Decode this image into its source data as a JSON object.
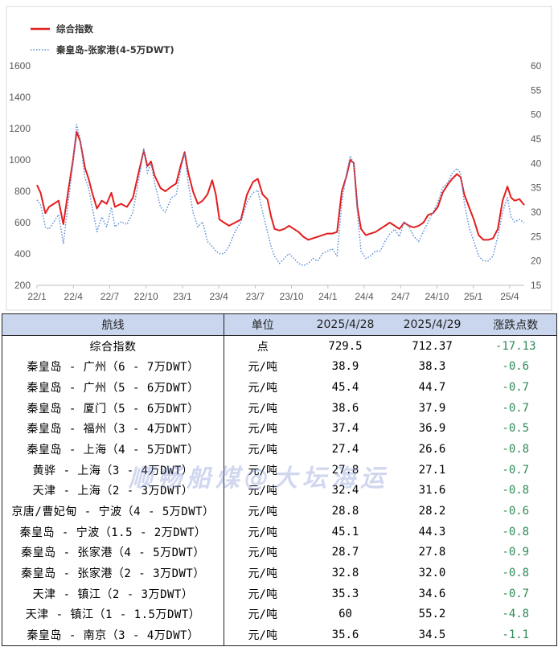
{
  "chart_data": {
    "type": "line",
    "legend": [
      {
        "name": "综合指数",
        "color": "#e31d1d",
        "style": "solid"
      },
      {
        "name": "秦皇岛-张家港(4-5万DWT)",
        "color": "#5b8fd6",
        "style": "dotted"
      }
    ],
    "x_ticks": [
      "22/1",
      "22/4",
      "22/7",
      "22/10",
      "23/1",
      "23/4",
      "23/7",
      "23/10",
      "24/1",
      "24/4",
      "24/7",
      "24/10",
      "25/1",
      "25/4"
    ],
    "y_left_ticks": [
      "200",
      "400",
      "600",
      "800",
      "1000",
      "1200",
      "1400",
      "1600"
    ],
    "y_right_ticks": [
      "15",
      "20",
      "25",
      "30",
      "35",
      "40",
      "45",
      "50",
      "55",
      "60"
    ],
    "ylim_left": [
      200,
      1600
    ],
    "ylim_right": [
      15,
      60
    ],
    "x_range": [
      0,
      40.6
    ],
    "series": [
      {
        "name": "综合指数",
        "axis": "left",
        "points": [
          [
            0,
            840
          ],
          [
            0.3,
            790
          ],
          [
            0.7,
            660
          ],
          [
            1.0,
            700
          ],
          [
            1.4,
            720
          ],
          [
            1.8,
            740
          ],
          [
            2.2,
            590
          ],
          [
            2.6,
            800
          ],
          [
            3.0,
            1000
          ],
          [
            3.3,
            1180
          ],
          [
            3.6,
            1120
          ],
          [
            4.0,
            950
          ],
          [
            4.3,
            880
          ],
          [
            4.6,
            790
          ],
          [
            5.0,
            690
          ],
          [
            5.4,
            740
          ],
          [
            5.8,
            720
          ],
          [
            6.2,
            790
          ],
          [
            6.5,
            700
          ],
          [
            7.0,
            720
          ],
          [
            7.5,
            700
          ],
          [
            8.0,
            760
          ],
          [
            8.5,
            930
          ],
          [
            8.9,
            1060
          ],
          [
            9.2,
            960
          ],
          [
            9.5,
            990
          ],
          [
            9.8,
            900
          ],
          [
            10.3,
            820
          ],
          [
            10.7,
            800
          ],
          [
            11.2,
            830
          ],
          [
            11.6,
            850
          ],
          [
            12.0,
            970
          ],
          [
            12.3,
            1050
          ],
          [
            12.6,
            920
          ],
          [
            13.0,
            800
          ],
          [
            13.4,
            720
          ],
          [
            13.8,
            740
          ],
          [
            14.2,
            780
          ],
          [
            14.6,
            870
          ],
          [
            14.9,
            780
          ],
          [
            15.2,
            620
          ],
          [
            15.6,
            600
          ],
          [
            16.0,
            580
          ],
          [
            16.5,
            600
          ],
          [
            17.0,
            620
          ],
          [
            17.5,
            780
          ],
          [
            18.0,
            860
          ],
          [
            18.4,
            880
          ],
          [
            18.8,
            780
          ],
          [
            19.2,
            750
          ],
          [
            19.5,
            640
          ],
          [
            19.8,
            560
          ],
          [
            20.2,
            550
          ],
          [
            20.6,
            560
          ],
          [
            21.0,
            580
          ],
          [
            21.4,
            560
          ],
          [
            21.8,
            540
          ],
          [
            22.2,
            510
          ],
          [
            22.6,
            490
          ],
          [
            23.0,
            500
          ],
          [
            23.4,
            510
          ],
          [
            23.8,
            520
          ],
          [
            24.2,
            530
          ],
          [
            24.6,
            530
          ],
          [
            25.0,
            540
          ],
          [
            25.4,
            800
          ],
          [
            25.8,
            900
          ],
          [
            26.1,
            1000
          ],
          [
            26.4,
            980
          ],
          [
            26.7,
            700
          ],
          [
            27.0,
            560
          ],
          [
            27.4,
            520
          ],
          [
            27.8,
            530
          ],
          [
            28.2,
            540
          ],
          [
            28.6,
            560
          ],
          [
            29.0,
            580
          ],
          [
            29.4,
            600
          ],
          [
            29.8,
            580
          ],
          [
            30.2,
            560
          ],
          [
            30.6,
            600
          ],
          [
            31.0,
            580
          ],
          [
            31.4,
            570
          ],
          [
            31.8,
            580
          ],
          [
            32.2,
            600
          ],
          [
            32.6,
            650
          ],
          [
            33.0,
            660
          ],
          [
            33.4,
            700
          ],
          [
            33.8,
            790
          ],
          [
            34.2,
            840
          ],
          [
            34.6,
            880
          ],
          [
            35.0,
            910
          ],
          [
            35.3,
            890
          ],
          [
            35.6,
            780
          ],
          [
            36.0,
            700
          ],
          [
            36.4,
            620
          ],
          [
            36.8,
            520
          ],
          [
            37.2,
            490
          ],
          [
            37.6,
            490
          ],
          [
            38.0,
            500
          ],
          [
            38.4,
            560
          ],
          [
            38.8,
            740
          ],
          [
            39.2,
            830
          ],
          [
            39.5,
            760
          ],
          [
            39.8,
            740
          ],
          [
            40.2,
            750
          ],
          [
            40.6,
            712.37
          ]
        ]
      },
      {
        "name": "秦皇岛-张家港(4-5万DWT)",
        "axis": "right",
        "points": [
          [
            0,
            32.5
          ],
          [
            0.3,
            31.5
          ],
          [
            0.7,
            27
          ],
          [
            1.0,
            26.5
          ],
          [
            1.4,
            28
          ],
          [
            1.8,
            29.5
          ],
          [
            2.2,
            23.5
          ],
          [
            2.6,
            32
          ],
          [
            3.0,
            40
          ],
          [
            3.3,
            48
          ],
          [
            3.6,
            45
          ],
          [
            4.0,
            37
          ],
          [
            4.3,
            35
          ],
          [
            4.6,
            31
          ],
          [
            5.0,
            26
          ],
          [
            5.4,
            29
          ],
          [
            5.8,
            27
          ],
          [
            6.2,
            31
          ],
          [
            6.5,
            27
          ],
          [
            7.0,
            28
          ],
          [
            7.5,
            27.5
          ],
          [
            8.0,
            30
          ],
          [
            8.5,
            37
          ],
          [
            8.9,
            43
          ],
          [
            9.2,
            38
          ],
          [
            9.5,
            40
          ],
          [
            9.8,
            36
          ],
          [
            10.3,
            31
          ],
          [
            10.7,
            30
          ],
          [
            11.2,
            33
          ],
          [
            11.6,
            33.5
          ],
          [
            12.0,
            39
          ],
          [
            12.3,
            42
          ],
          [
            12.6,
            36
          ],
          [
            13.0,
            30
          ],
          [
            13.4,
            27
          ],
          [
            13.8,
            28
          ],
          [
            14.2,
            24
          ],
          [
            14.6,
            23
          ],
          [
            14.9,
            22
          ],
          [
            15.2,
            21.5
          ],
          [
            15.6,
            21.5
          ],
          [
            16.0,
            23
          ],
          [
            16.5,
            26
          ],
          [
            17.0,
            28
          ],
          [
            17.5,
            32
          ],
          [
            18.0,
            34
          ],
          [
            18.4,
            34.5
          ],
          [
            18.8,
            30
          ],
          [
            19.2,
            26
          ],
          [
            19.5,
            23
          ],
          [
            19.8,
            21
          ],
          [
            20.2,
            19.5
          ],
          [
            20.6,
            20.5
          ],
          [
            21.0,
            21.5
          ],
          [
            21.4,
            20.5
          ],
          [
            21.8,
            19.5
          ],
          [
            22.2,
            19
          ],
          [
            22.6,
            19.5
          ],
          [
            23.0,
            20.5
          ],
          [
            23.4,
            20
          ],
          [
            23.8,
            21.5
          ],
          [
            24.2,
            22
          ],
          [
            24.6,
            22.5
          ],
          [
            25.0,
            21
          ],
          [
            25.4,
            32
          ],
          [
            25.8,
            38
          ],
          [
            26.1,
            41.5
          ],
          [
            26.4,
            40
          ],
          [
            26.7,
            30
          ],
          [
            27.0,
            22
          ],
          [
            27.4,
            20.5
          ],
          [
            27.8,
            21
          ],
          [
            28.2,
            22
          ],
          [
            28.6,
            22
          ],
          [
            29.0,
            24
          ],
          [
            29.4,
            25.5
          ],
          [
            29.8,
            26.5
          ],
          [
            30.2,
            25
          ],
          [
            30.6,
            28
          ],
          [
            31.0,
            27
          ],
          [
            31.4,
            25
          ],
          [
            31.8,
            24
          ],
          [
            32.2,
            26
          ],
          [
            32.6,
            28
          ],
          [
            33.0,
            30
          ],
          [
            33.4,
            32
          ],
          [
            33.8,
            35
          ],
          [
            34.2,
            36
          ],
          [
            34.6,
            38
          ],
          [
            35.0,
            39
          ],
          [
            35.3,
            38
          ],
          [
            35.6,
            32
          ],
          [
            36.0,
            27
          ],
          [
            36.4,
            24
          ],
          [
            36.8,
            21
          ],
          [
            37.2,
            20
          ],
          [
            37.6,
            20
          ],
          [
            38.0,
            21
          ],
          [
            38.4,
            25
          ],
          [
            38.8,
            30
          ],
          [
            39.2,
            33
          ],
          [
            39.5,
            29
          ],
          [
            39.8,
            28
          ],
          [
            40.2,
            28.5
          ],
          [
            40.6,
            27.8
          ]
        ]
      }
    ]
  },
  "table": {
    "headers": [
      "航线",
      "单位",
      "2025/4/28",
      "2025/4/29",
      "涨跌点数"
    ],
    "rows": [
      [
        "综合指数",
        "点",
        "729.5",
        "712.37",
        "-17.13"
      ],
      [
        "秦皇岛 - 广州（6 - 7万DWT）",
        "元/吨",
        "38.9",
        "38.3",
        "-0.6"
      ],
      [
        "秦皇岛 - 广州（5 - 6万DWT）",
        "元/吨",
        "45.4",
        "44.7",
        "-0.7"
      ],
      [
        "秦皇岛 - 厦门（5 - 6万DWT）",
        "元/吨",
        "38.6",
        "37.9",
        "-0.7"
      ],
      [
        "秦皇岛 - 福州（3 - 4万DWT）",
        "元/吨",
        "37.4",
        "36.9",
        "-0.5"
      ],
      [
        "秦皇岛 - 上海（4 - 5万DWT）",
        "元/吨",
        "27.4",
        "26.6",
        "-0.8"
      ],
      [
        "黄骅 - 上海（3 - 4万DWT）",
        "元/吨",
        "27.8",
        "27.1",
        "-0.7"
      ],
      [
        "天津 - 上海（2 - 3万DWT）",
        "元/吨",
        "32.4",
        "31.6",
        "-0.8"
      ],
      [
        "京唐/曹妃甸 - 宁波（4 - 5万DWT）",
        "元/吨",
        "28.8",
        "28.2",
        "-0.6"
      ],
      [
        "秦皇岛 - 宁波（1.5 - 2万DWT）",
        "元/吨",
        "45.1",
        "44.3",
        "-0.8"
      ],
      [
        "秦皇岛 - 张家港（4 - 5万DWT）",
        "元/吨",
        "28.7",
        "27.8",
        "-0.9"
      ],
      [
        "秦皇岛 - 张家港（2 - 3万DWT）",
        "元/吨",
        "32.8",
        "32.0",
        "-0.8"
      ],
      [
        "天津 - 镇江（2 - 3万DWT）",
        "元/吨",
        "35.3",
        "34.6",
        "-0.7"
      ],
      [
        "天津 - 镇江（1 - 1.5万DWT）",
        "元/吨",
        "60",
        "55.2",
        "-4.8"
      ],
      [
        "秦皇岛 - 南京（3 - 4万DWT）",
        "元/吨",
        "35.6",
        "34.5",
        "-1.1"
      ]
    ]
  },
  "watermark": "顺畅船煤@大坛海运"
}
